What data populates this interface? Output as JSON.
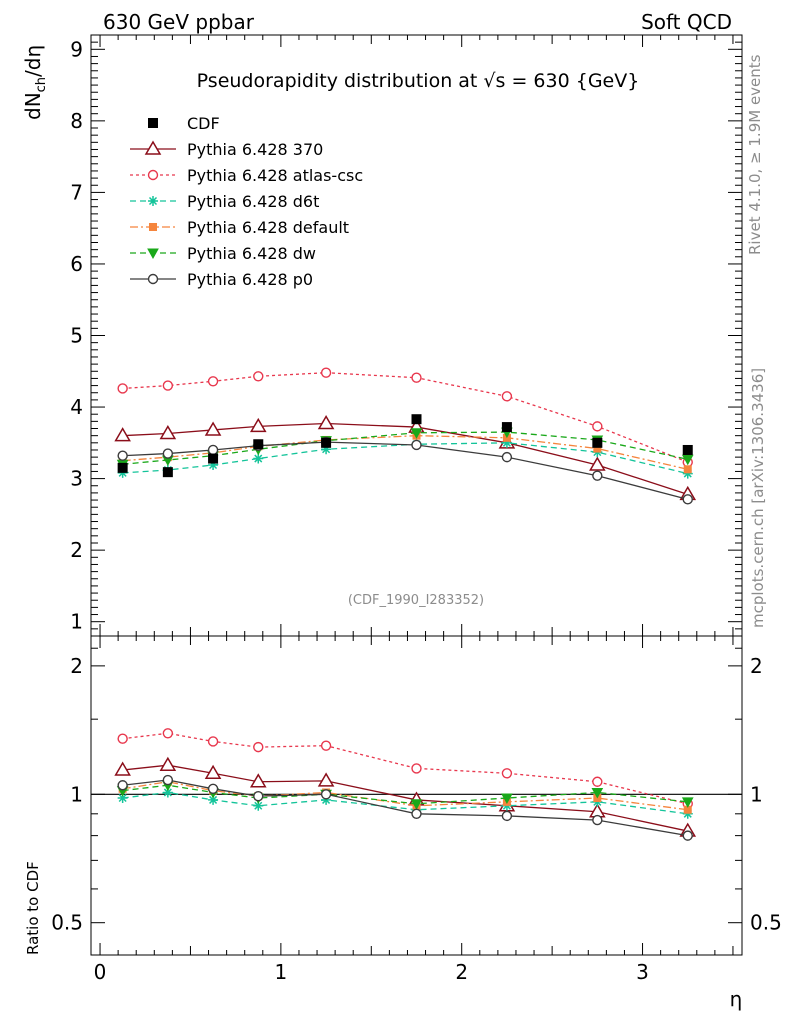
{
  "header": {
    "left": "630 GeV ppbar",
    "right": "Soft QCD"
  },
  "side_text": {
    "rivet": "Rivet 4.1.0, ≥ 1.9M events",
    "mcplots": "mcplots.cern.ch [arXiv:1306.3436]"
  },
  "chart_data": {
    "type": "line",
    "title": "Pseudorapidity distribution at √s = 630 {GeV}",
    "analysis_label": "(CDF_1990_I283352)",
    "xlabel": "η",
    "ylabel_main": "dN_ch/dη",
    "ylabel_ratio": "Ratio to CDF",
    "xlim": [
      -0.05,
      3.55
    ],
    "ylim_main": [
      0.8,
      9.2
    ],
    "ylim_ratio": [
      0.42,
      2.35
    ],
    "x_ticks": [
      0,
      1,
      2,
      3
    ],
    "x_tick_labels": [
      "0",
      "1",
      "2",
      "3"
    ],
    "y_ticks_main": [
      1,
      2,
      3,
      4,
      5,
      6,
      7,
      8,
      9
    ],
    "y_tick_labels_main": [
      "1",
      "2",
      "3",
      "4",
      "5",
      "6",
      "7",
      "8",
      "9"
    ],
    "y_ticks_ratio": [
      0.5,
      1,
      2
    ],
    "y_tick_labels_ratio": [
      "0.5",
      "1",
      "2"
    ],
    "x": [
      0.125,
      0.375,
      0.625,
      0.875,
      1.25,
      1.75,
      2.25,
      2.75,
      3.25
    ],
    "data": {
      "name": "CDF",
      "values": [
        3.15,
        3.09,
        3.28,
        3.48,
        3.5,
        3.83,
        3.72,
        3.5,
        3.4
      ],
      "errors": [
        0.05,
        0.05,
        0.05,
        0.05,
        0.05,
        0.05,
        0.05,
        0.05,
        0.05
      ]
    },
    "series": [
      {
        "name": "Pythia 6.428 370",
        "color": "#8b0e1a",
        "dash": "solid",
        "marker": "triangle-open",
        "values": [
          3.6,
          3.63,
          3.68,
          3.73,
          3.77,
          3.72,
          3.5,
          3.19,
          2.78
        ],
        "ratio": [
          1.14,
          1.17,
          1.12,
          1.07,
          1.075,
          0.97,
          0.94,
          0.91,
          0.82
        ]
      },
      {
        "name": "Pythia 6.428 atlas-csc",
        "color": "#e8374d",
        "dash": "dotted",
        "marker": "circle-open",
        "values": [
          4.26,
          4.3,
          4.36,
          4.43,
          4.48,
          4.41,
          4.15,
          3.73,
          3.23
        ],
        "ratio": [
          1.35,
          1.39,
          1.33,
          1.29,
          1.3,
          1.15,
          1.12,
          1.07,
          0.95
        ]
      },
      {
        "name": "Pythia 6.428 d6t",
        "color": "#14c49a",
        "dash": "dashed",
        "marker": "star",
        "values": [
          3.08,
          3.12,
          3.19,
          3.28,
          3.41,
          3.48,
          3.5,
          3.37,
          3.07
        ],
        "ratio": [
          0.98,
          1.01,
          0.97,
          0.94,
          0.97,
          0.92,
          0.94,
          0.96,
          0.9
        ]
      },
      {
        "name": "Pythia 6.428 default",
        "color": "#f5853d",
        "dash": "dashdot",
        "marker": "square",
        "values": [
          3.25,
          3.3,
          3.36,
          3.45,
          3.54,
          3.6,
          3.57,
          3.42,
          3.13
        ],
        "ratio": [
          1.03,
          1.07,
          1.02,
          0.99,
          1.01,
          0.94,
          0.96,
          0.98,
          0.92
        ]
      },
      {
        "name": "Pythia 6.428 dw",
        "color": "#1aa81a",
        "dash": "dashed",
        "marker": "triangle-down",
        "values": [
          3.2,
          3.26,
          3.32,
          3.41,
          3.53,
          3.64,
          3.65,
          3.54,
          3.27
        ],
        "ratio": [
          1.02,
          1.05,
          1.01,
          0.98,
          1.0,
          0.95,
          0.98,
          1.01,
          0.96
        ]
      },
      {
        "name": "Pythia 6.428 p0",
        "color": "#3c3c3c",
        "dash": "solid",
        "marker": "circle-open",
        "values": [
          3.32,
          3.35,
          3.4,
          3.46,
          3.51,
          3.47,
          3.3,
          3.04,
          2.71
        ],
        "ratio": [
          1.05,
          1.08,
          1.03,
          0.99,
          1.0,
          0.9,
          0.89,
          0.87,
          0.8
        ]
      }
    ],
    "legend_position": "top-left"
  }
}
